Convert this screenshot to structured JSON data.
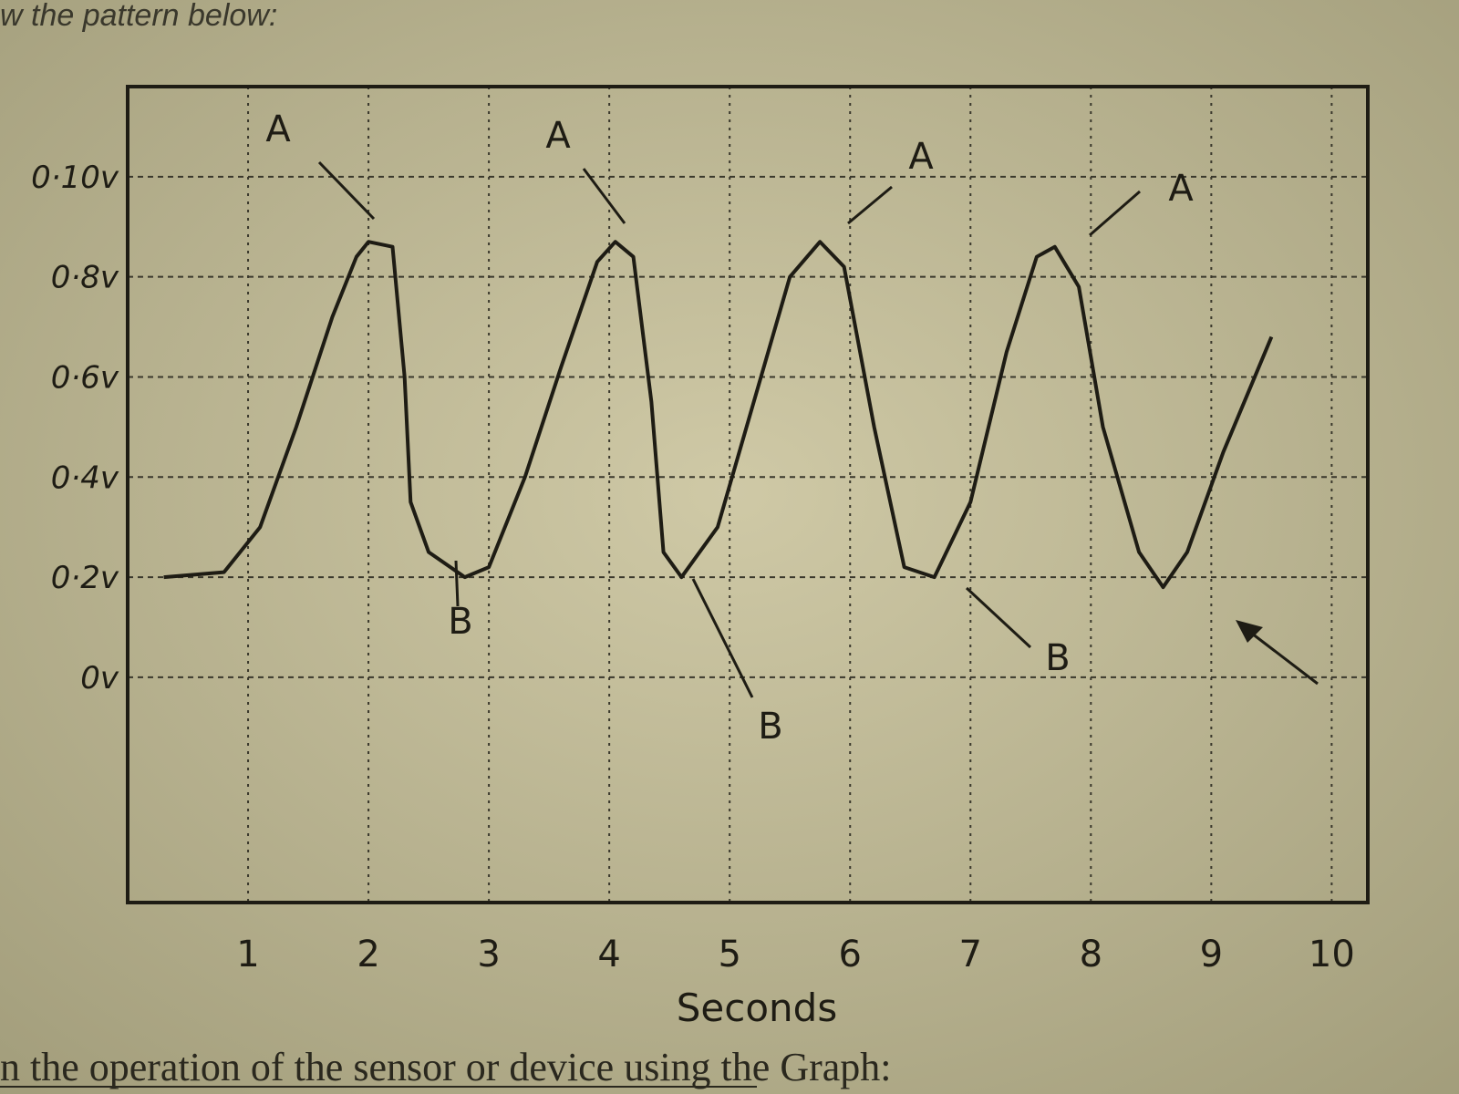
{
  "header": "w the pattern below:",
  "footer": "n the operation of the sensor or device using the Graph:",
  "chart_data": {
    "type": "line",
    "x_label": "Seconds",
    "x": [
      0.3,
      0.8,
      1.1,
      1.4,
      1.7,
      1.9,
      2.0,
      2.2,
      2.3,
      2.35,
      2.5,
      2.8,
      3.0,
      3.3,
      3.6,
      3.9,
      4.05,
      4.2,
      4.35,
      4.45,
      4.6,
      4.9,
      5.2,
      5.5,
      5.75,
      5.95,
      6.2,
      6.45,
      6.7,
      7.0,
      7.3,
      7.55,
      7.7,
      7.9,
      8.1,
      8.4,
      8.6,
      8.8,
      9.1,
      9.5
    ],
    "series": [
      {
        "color": "#1e1c14",
        "values": [
          0.2,
          0.21,
          0.3,
          0.5,
          0.72,
          0.84,
          0.87,
          0.86,
          0.6,
          0.35,
          0.25,
          0.2,
          0.22,
          0.4,
          0.62,
          0.83,
          0.87,
          0.84,
          0.55,
          0.25,
          0.2,
          0.3,
          0.55,
          0.8,
          0.87,
          0.82,
          0.5,
          0.22,
          0.2,
          0.35,
          0.65,
          0.84,
          0.86,
          0.78,
          0.5,
          0.25,
          0.18,
          0.25,
          0.45,
          0.68
        ]
      }
    ],
    "xlim": [
      0,
      10.3
    ],
    "xticks": [
      1,
      2,
      3,
      4,
      5,
      6,
      7,
      8,
      9,
      10
    ],
    "ylim": [
      -0.45,
      1.18
    ],
    "yticks": [
      {
        "value": 0,
        "label": "0v"
      },
      {
        "value": 0.2,
        "label": "0·2v"
      },
      {
        "value": 0.4,
        "label": "0·4v"
      },
      {
        "value": 0.6,
        "label": "0·6v"
      },
      {
        "value": 0.8,
        "label": "0·8v"
      },
      {
        "value": 1.0,
        "label": "0·10v"
      }
    ],
    "grid": true,
    "annotations": [
      "A",
      "A",
      "A",
      "A",
      "B",
      "B",
      "B"
    ]
  }
}
